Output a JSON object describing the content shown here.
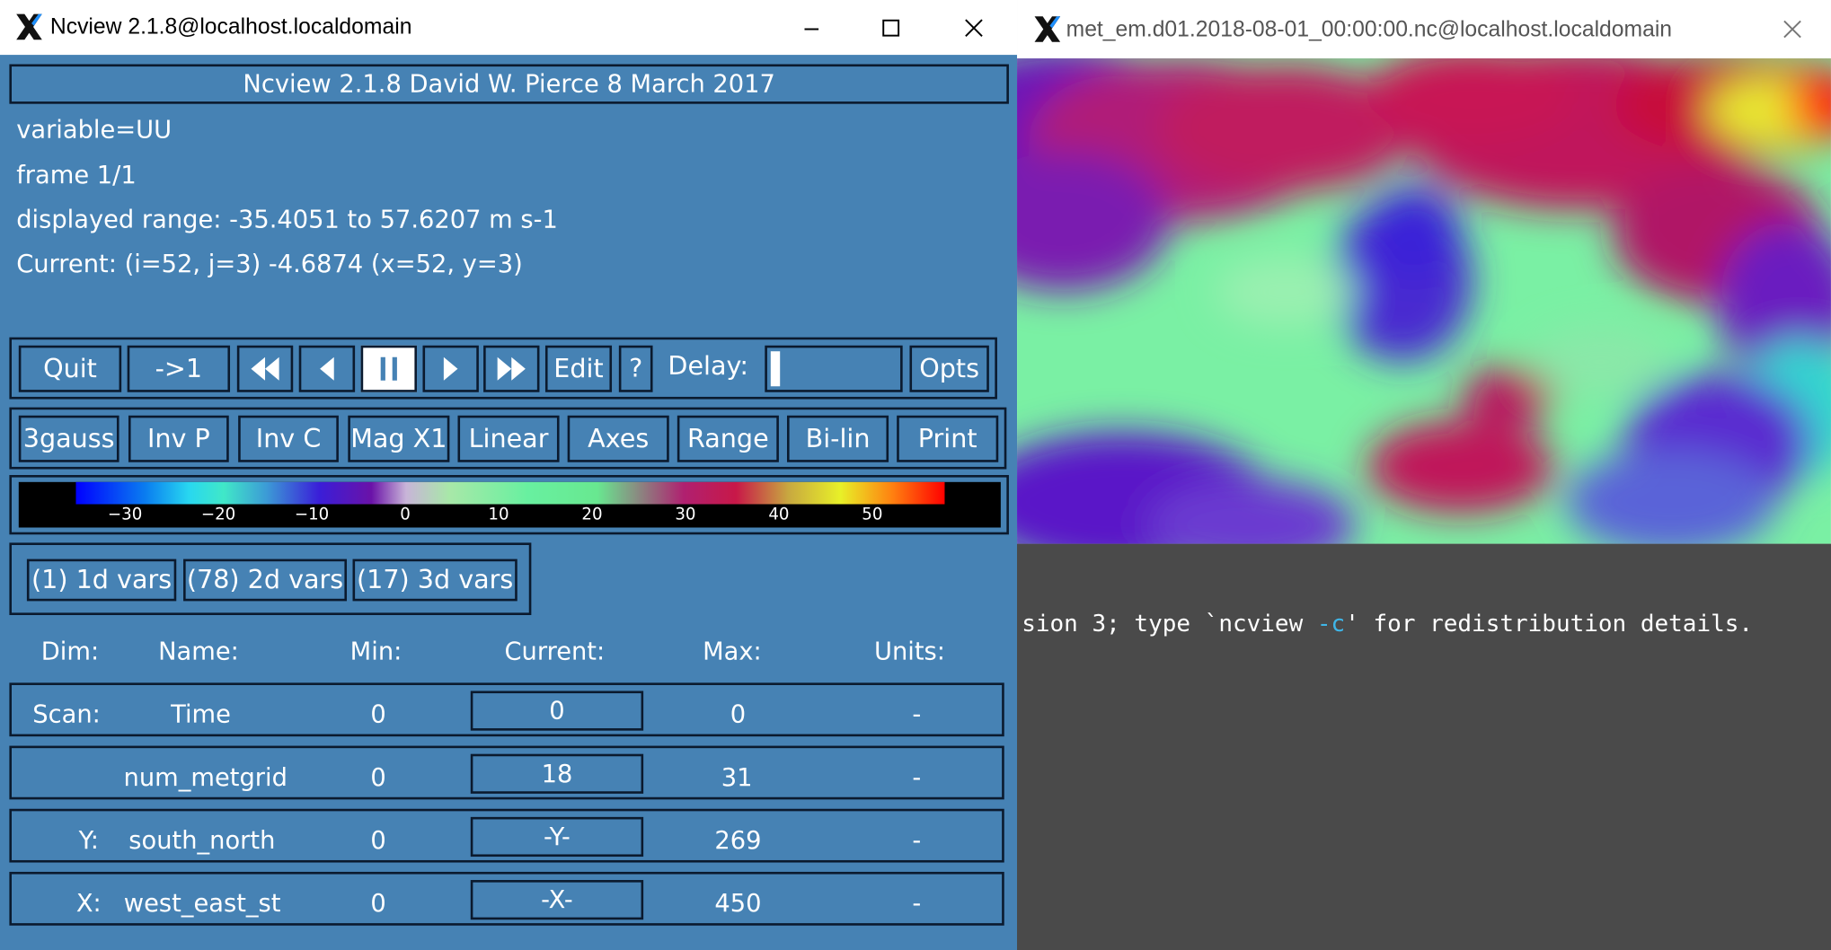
{
  "ncview_window": {
    "title": "Ncview 2.1.8@localhost.localdomain",
    "banner": "Ncview 2.1.8 David W. Pierce  8 March 2017",
    "info": {
      "variable": "variable=UU",
      "frame": "frame 1/1",
      "range": "displayed range: -35.4051 to 57.6207 m s-1",
      "current": "Current: (i=52, j=3) -4.6874 (x=52, y=3)"
    },
    "controls": {
      "quit": "Quit",
      "restart": "->1",
      "edit": "Edit",
      "help": "?",
      "delay_label": "Delay:",
      "opts": "Opts"
    },
    "options_row": [
      "3gauss",
      "Inv P",
      "Inv C",
      "Mag X1",
      "Linear",
      "Axes",
      "Range",
      "Bi-lin",
      "Print"
    ],
    "colorbar_ticks": [
      "−30",
      "−20",
      "−10",
      "0",
      "10",
      "20",
      "30",
      "40",
      "50"
    ],
    "var_groups": [
      "(1) 1d vars",
      "(78) 2d vars",
      "(17) 3d vars"
    ],
    "dim_headers": {
      "dim": "Dim:",
      "name": "Name:",
      "min": "Min:",
      "current": "Current:",
      "max": "Max:",
      "units": "Units:"
    },
    "dims": [
      {
        "dim": "Scan:",
        "name": "Time",
        "min": "0",
        "current": "0",
        "max": "0",
        "units": "-"
      },
      {
        "dim": "",
        "name": "num_metgrid",
        "min": "0",
        "current": "18",
        "max": "31",
        "units": "-"
      },
      {
        "dim": "Y:",
        "name": "south_north",
        "min": "0",
        "current": "-Y-",
        "max": "269",
        "units": "-"
      },
      {
        "dim": "X:",
        "name": "west_east_st",
        "min": "0",
        "current": "-X-",
        "max": "450",
        "units": "-"
      }
    ],
    "colors": {
      "background": "#4682b4",
      "border": "#0b1a2e"
    }
  },
  "image_window": {
    "title": "met_em.d01.2018-08-01_00:00:00.nc@localhost.localdomain"
  },
  "terminal": {
    "text_a": "sion 3; type `ncview ",
    "text_b": "-c",
    "text_c": "' for redistribution details."
  }
}
